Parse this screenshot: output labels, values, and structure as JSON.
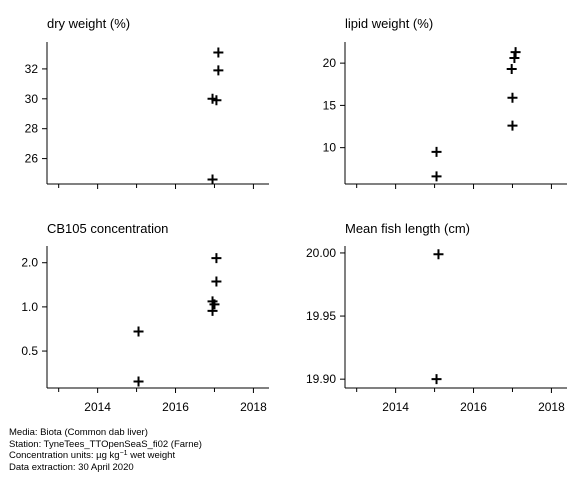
{
  "chart_data": [
    {
      "type": "scatter",
      "title": "dry weight (%)",
      "xlim": [
        2012.7,
        2018.4
      ],
      "ylim": [
        24.3,
        33.8
      ],
      "xticks": [
        2014,
        2016,
        2018
      ],
      "yticks": [
        26,
        28,
        30,
        32
      ],
      "show_x_tick_labels": false,
      "marker": "plus",
      "points": [
        {
          "x": 2016.95,
          "y": 24.6
        },
        {
          "x": 2016.95,
          "y": 30.0
        },
        {
          "x": 2017.05,
          "y": 29.9
        },
        {
          "x": 2017.1,
          "y": 31.9
        },
        {
          "x": 2017.1,
          "y": 33.1
        }
      ]
    },
    {
      "type": "scatter",
      "title": "lipid weight (%)",
      "xlim": [
        2012.7,
        2018.4
      ],
      "ylim": [
        5.7,
        22.5
      ],
      "xticks": [
        2014,
        2016,
        2018
      ],
      "yticks": [
        10,
        15,
        20
      ],
      "show_x_tick_labels": false,
      "marker": "plus",
      "points": [
        {
          "x": 2015.05,
          "y": 6.6
        },
        {
          "x": 2015.05,
          "y": 9.5
        },
        {
          "x": 2017.0,
          "y": 12.6
        },
        {
          "x": 2017.0,
          "y": 15.9
        },
        {
          "x": 2016.98,
          "y": 19.3
        },
        {
          "x": 2017.05,
          "y": 20.6
        },
        {
          "x": 2017.08,
          "y": 21.3
        }
      ]
    },
    {
      "type": "scatter",
      "title": "CB105 concentration",
      "xlim": [
        2012.7,
        2018.4
      ],
      "y_scale": "log",
      "ylim": [
        0.28,
        2.6
      ],
      "xticks": [
        2014,
        2016,
        2018
      ],
      "yticks": [
        0.5,
        1.0,
        2.0
      ],
      "ytick_labels": [
        "0.5",
        "1.0",
        "2.0"
      ],
      "show_x_tick_labels": false,
      "marker": "plus",
      "points": [
        {
          "x": 2015.05,
          "y": 0.31
        },
        {
          "x": 2015.05,
          "y": 0.68
        },
        {
          "x": 2016.95,
          "y": 0.94
        },
        {
          "x": 2016.95,
          "y": 1.09
        },
        {
          "x": 2017.0,
          "y": 1.04
        },
        {
          "x": 2017.05,
          "y": 1.49
        },
        {
          "x": 2017.05,
          "y": 2.15
        }
      ]
    },
    {
      "type": "scatter",
      "title": "Mean fish length (cm)",
      "xlim": [
        2012.7,
        2018.4
      ],
      "ylim": [
        19.893,
        20.0055
      ],
      "xticks": [
        2014,
        2016,
        2018
      ],
      "yticks": [
        19.9,
        19.95,
        20.0
      ],
      "ytick_labels": [
        "19.90",
        "19.95",
        "20.00"
      ],
      "show_x_tick_labels": true,
      "marker": "plus",
      "points": [
        {
          "x": 2015.05,
          "y": 19.9
        },
        {
          "x": 2015.1,
          "y": 19.999
        }
      ]
    }
  ],
  "footer": {
    "media": "Media: Biota (Common dab liver)",
    "station": "Station: TyneTees_TTOpenSeaS_fi02 (Farne)",
    "units_prefix": "Concentration units:  µg kg",
    "units_exponent": "−1",
    "units_suffix": " wet weight",
    "extraction": "Data extraction: 30 April 2020"
  }
}
